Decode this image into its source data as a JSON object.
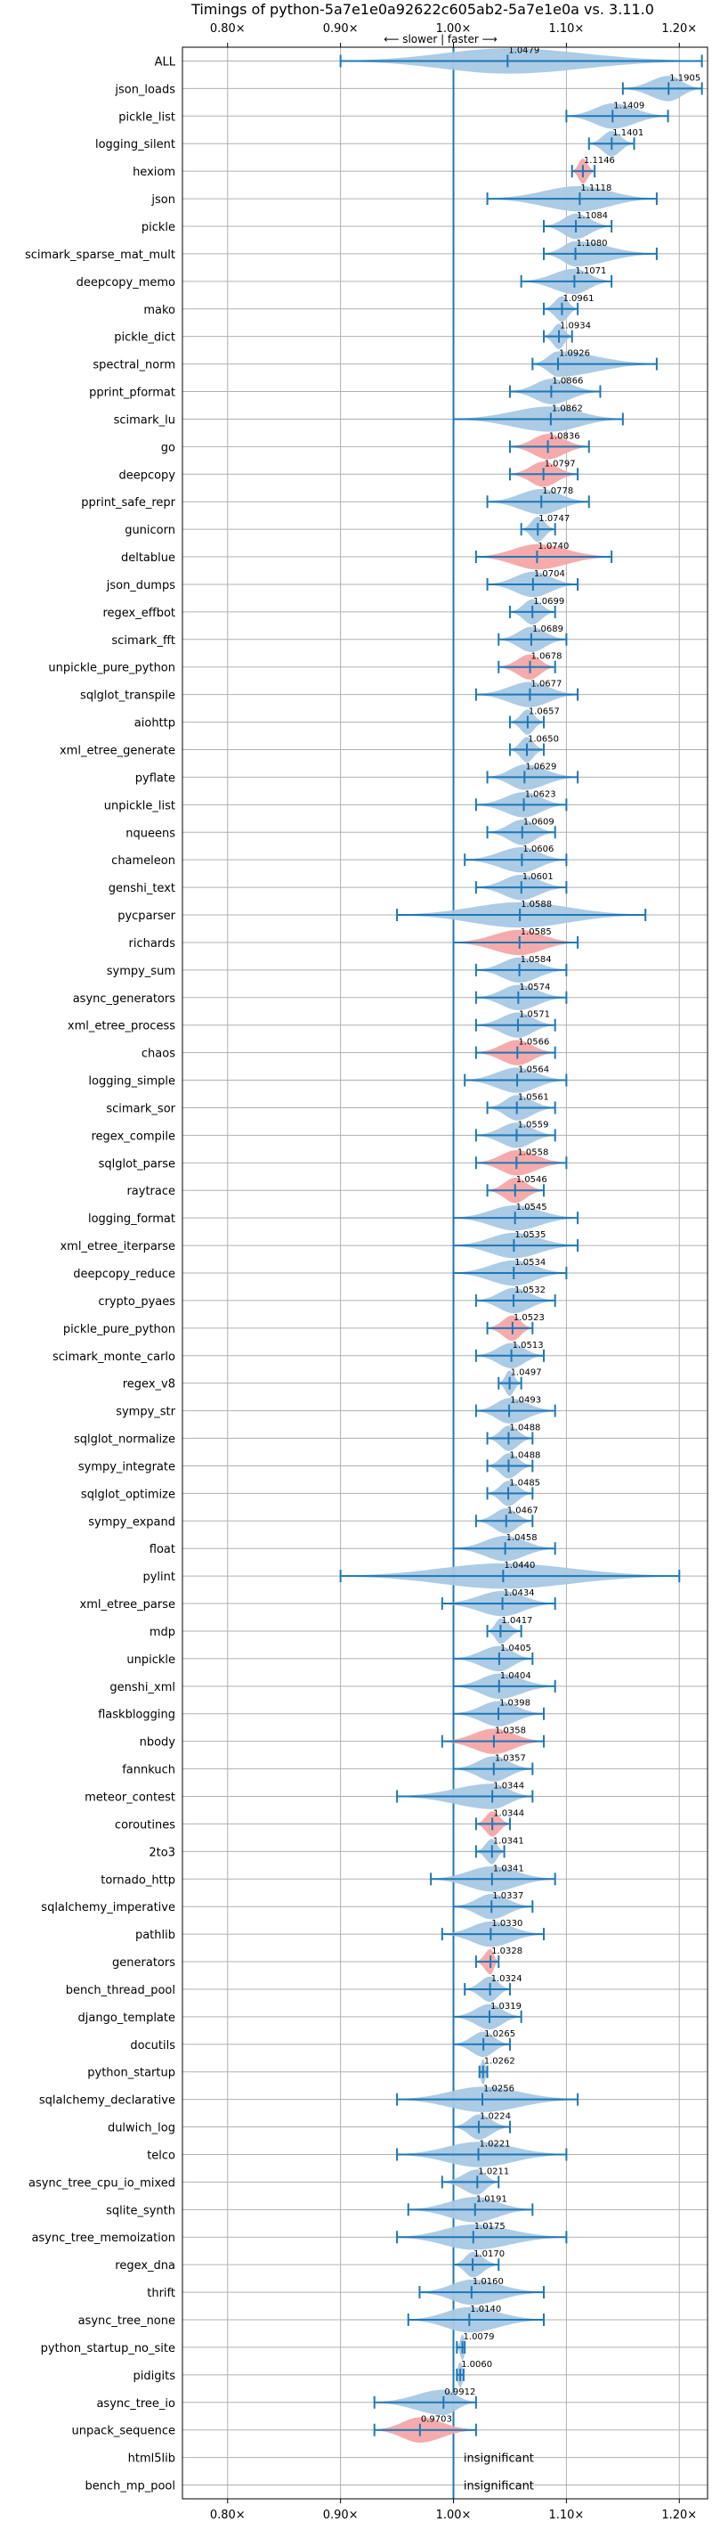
{
  "chart_data": {
    "type": "violin",
    "title": "Timings of python-5a7e1e0a92622c605ab2-5a7e1e0a vs. 3.11.0",
    "subtitle": "⟵ slower | faster ⟶",
    "xlim": [
      0.76,
      1.225
    ],
    "xticks": [
      0.8,
      0.9,
      1.0,
      1.1,
      1.2
    ],
    "xtick_labels": [
      "0.80×",
      "0.90×",
      "1.00×",
      "1.10×",
      "1.20×"
    ],
    "reference_line": 1.0,
    "grid": true,
    "colors": {
      "faster": "#a8c8e4",
      "slower": "#f4a6a8",
      "whisker": "#1f77b4"
    },
    "insignificant_label": "insignificant",
    "benchmarks": [
      {
        "name": "ALL",
        "value": "1.0479",
        "center": 1.0479,
        "min": 0.9,
        "max": 1.22,
        "slower": false
      },
      {
        "name": "json_loads",
        "value": "1.1905",
        "center": 1.1905,
        "min": 1.15,
        "max": 1.22,
        "slower": false
      },
      {
        "name": "pickle_list",
        "value": "1.1409",
        "center": 1.1409,
        "min": 1.1,
        "max": 1.19,
        "slower": false
      },
      {
        "name": "logging_silent",
        "value": "1.1401",
        "center": 1.1401,
        "min": 1.12,
        "max": 1.16,
        "slower": false
      },
      {
        "name": "hexiom",
        "value": "1.1146",
        "center": 1.1146,
        "min": 1.105,
        "max": 1.125,
        "slower": true
      },
      {
        "name": "json",
        "value": "1.1118",
        "center": 1.1118,
        "min": 1.03,
        "max": 1.18,
        "slower": false
      },
      {
        "name": "pickle",
        "value": "1.1084",
        "center": 1.1084,
        "min": 1.08,
        "max": 1.14,
        "slower": false
      },
      {
        "name": "scimark_sparse_mat_mult",
        "value": "1.1080",
        "center": 1.108,
        "min": 1.08,
        "max": 1.18,
        "slower": false
      },
      {
        "name": "deepcopy_memo",
        "value": "1.1071",
        "center": 1.1071,
        "min": 1.06,
        "max": 1.14,
        "slower": false
      },
      {
        "name": "mako",
        "value": "1.0961",
        "center": 1.0961,
        "min": 1.08,
        "max": 1.11,
        "slower": false
      },
      {
        "name": "pickle_dict",
        "value": "1.0934",
        "center": 1.0934,
        "min": 1.08,
        "max": 1.105,
        "slower": false
      },
      {
        "name": "spectral_norm",
        "value": "1.0926",
        "center": 1.0926,
        "min": 1.07,
        "max": 1.18,
        "slower": false
      },
      {
        "name": "pprint_pformat",
        "value": "1.0866",
        "center": 1.0866,
        "min": 1.05,
        "max": 1.13,
        "slower": false
      },
      {
        "name": "scimark_lu",
        "value": "1.0862",
        "center": 1.0862,
        "min": 1.0,
        "max": 1.15,
        "slower": false
      },
      {
        "name": "go",
        "value": "1.0836",
        "center": 1.0836,
        "min": 1.05,
        "max": 1.12,
        "slower": true
      },
      {
        "name": "deepcopy",
        "value": "1.0797",
        "center": 1.0797,
        "min": 1.05,
        "max": 1.11,
        "slower": true
      },
      {
        "name": "pprint_safe_repr",
        "value": "1.0778",
        "center": 1.0778,
        "min": 1.03,
        "max": 1.12,
        "slower": false
      },
      {
        "name": "gunicorn",
        "value": "1.0747",
        "center": 1.0747,
        "min": 1.06,
        "max": 1.09,
        "slower": false
      },
      {
        "name": "deltablue",
        "value": "1.0740",
        "center": 1.074,
        "min": 1.02,
        "max": 1.14,
        "slower": true
      },
      {
        "name": "json_dumps",
        "value": "1.0704",
        "center": 1.0704,
        "min": 1.03,
        "max": 1.11,
        "slower": false
      },
      {
        "name": "regex_effbot",
        "value": "1.0699",
        "center": 1.0699,
        "min": 1.05,
        "max": 1.09,
        "slower": false
      },
      {
        "name": "scimark_fft",
        "value": "1.0689",
        "center": 1.0689,
        "min": 1.04,
        "max": 1.1,
        "slower": false
      },
      {
        "name": "unpickle_pure_python",
        "value": "1.0678",
        "center": 1.0678,
        "min": 1.04,
        "max": 1.09,
        "slower": true
      },
      {
        "name": "sqlglot_transpile",
        "value": "1.0677",
        "center": 1.0677,
        "min": 1.02,
        "max": 1.11,
        "slower": false
      },
      {
        "name": "aiohttp",
        "value": "1.0657",
        "center": 1.0657,
        "min": 1.05,
        "max": 1.08,
        "slower": false
      },
      {
        "name": "xml_etree_generate",
        "value": "1.0650",
        "center": 1.065,
        "min": 1.05,
        "max": 1.08,
        "slower": false
      },
      {
        "name": "pyflate",
        "value": "1.0629",
        "center": 1.0629,
        "min": 1.03,
        "max": 1.11,
        "slower": false
      },
      {
        "name": "unpickle_list",
        "value": "1.0623",
        "center": 1.0623,
        "min": 1.02,
        "max": 1.1,
        "slower": false
      },
      {
        "name": "nqueens",
        "value": "1.0609",
        "center": 1.0609,
        "min": 1.03,
        "max": 1.09,
        "slower": false
      },
      {
        "name": "chameleon",
        "value": "1.0606",
        "center": 1.0606,
        "min": 1.01,
        "max": 1.1,
        "slower": false
      },
      {
        "name": "genshi_text",
        "value": "1.0601",
        "center": 1.0601,
        "min": 1.02,
        "max": 1.1,
        "slower": false
      },
      {
        "name": "pycparser",
        "value": "1.0588",
        "center": 1.0588,
        "min": 0.95,
        "max": 1.17,
        "slower": false
      },
      {
        "name": "richards",
        "value": "1.0585",
        "center": 1.0585,
        "min": 1.0,
        "max": 1.11,
        "slower": true
      },
      {
        "name": "sympy_sum",
        "value": "1.0584",
        "center": 1.0584,
        "min": 1.02,
        "max": 1.1,
        "slower": false
      },
      {
        "name": "async_generators",
        "value": "1.0574",
        "center": 1.0574,
        "min": 1.02,
        "max": 1.1,
        "slower": false
      },
      {
        "name": "xml_etree_process",
        "value": "1.0571",
        "center": 1.0571,
        "min": 1.02,
        "max": 1.09,
        "slower": false
      },
      {
        "name": "chaos",
        "value": "1.0566",
        "center": 1.0566,
        "min": 1.02,
        "max": 1.09,
        "slower": true
      },
      {
        "name": "logging_simple",
        "value": "1.0564",
        "center": 1.0564,
        "min": 1.01,
        "max": 1.1,
        "slower": false
      },
      {
        "name": "scimark_sor",
        "value": "1.0561",
        "center": 1.0561,
        "min": 1.03,
        "max": 1.09,
        "slower": false
      },
      {
        "name": "regex_compile",
        "value": "1.0559",
        "center": 1.0559,
        "min": 1.02,
        "max": 1.09,
        "slower": false
      },
      {
        "name": "sqlglot_parse",
        "value": "1.0558",
        "center": 1.0558,
        "min": 1.02,
        "max": 1.1,
        "slower": true
      },
      {
        "name": "raytrace",
        "value": "1.0546",
        "center": 1.0546,
        "min": 1.03,
        "max": 1.08,
        "slower": true
      },
      {
        "name": "logging_format",
        "value": "1.0545",
        "center": 1.0545,
        "min": 1.0,
        "max": 1.11,
        "slower": false
      },
      {
        "name": "xml_etree_iterparse",
        "value": "1.0535",
        "center": 1.0535,
        "min": 1.0,
        "max": 1.11,
        "slower": false
      },
      {
        "name": "deepcopy_reduce",
        "value": "1.0534",
        "center": 1.0534,
        "min": 1.0,
        "max": 1.1,
        "slower": false
      },
      {
        "name": "crypto_pyaes",
        "value": "1.0532",
        "center": 1.0532,
        "min": 1.02,
        "max": 1.09,
        "slower": false
      },
      {
        "name": "pickle_pure_python",
        "value": "1.0523",
        "center": 1.0523,
        "min": 1.03,
        "max": 1.07,
        "slower": true
      },
      {
        "name": "scimark_monte_carlo",
        "value": "1.0513",
        "center": 1.0513,
        "min": 1.02,
        "max": 1.08,
        "slower": false
      },
      {
        "name": "regex_v8",
        "value": "1.0497",
        "center": 1.0497,
        "min": 1.04,
        "max": 1.06,
        "slower": false
      },
      {
        "name": "sympy_str",
        "value": "1.0493",
        "center": 1.0493,
        "min": 1.02,
        "max": 1.09,
        "slower": false
      },
      {
        "name": "sqlglot_normalize",
        "value": "1.0488",
        "center": 1.0488,
        "min": 1.03,
        "max": 1.07,
        "slower": false
      },
      {
        "name": "sympy_integrate",
        "value": "1.0488",
        "center": 1.0488,
        "min": 1.03,
        "max": 1.07,
        "slower": false
      },
      {
        "name": "sqlglot_optimize",
        "value": "1.0485",
        "center": 1.0485,
        "min": 1.03,
        "max": 1.07,
        "slower": false
      },
      {
        "name": "sympy_expand",
        "value": "1.0467",
        "center": 1.0467,
        "min": 1.02,
        "max": 1.07,
        "slower": false
      },
      {
        "name": "float",
        "value": "1.0458",
        "center": 1.0458,
        "min": 1.0,
        "max": 1.09,
        "slower": false
      },
      {
        "name": "pylint",
        "value": "1.0440",
        "center": 1.044,
        "min": 0.9,
        "max": 1.2,
        "slower": false
      },
      {
        "name": "xml_etree_parse",
        "value": "1.0434",
        "center": 1.0434,
        "min": 0.99,
        "max": 1.09,
        "slower": false
      },
      {
        "name": "mdp",
        "value": "1.0417",
        "center": 1.0417,
        "min": 1.03,
        "max": 1.06,
        "slower": false
      },
      {
        "name": "unpickle",
        "value": "1.0405",
        "center": 1.0405,
        "min": 1.0,
        "max": 1.07,
        "slower": false
      },
      {
        "name": "genshi_xml",
        "value": "1.0404",
        "center": 1.0404,
        "min": 1.0,
        "max": 1.09,
        "slower": false
      },
      {
        "name": "flaskblogging",
        "value": "1.0398",
        "center": 1.0398,
        "min": 1.0,
        "max": 1.08,
        "slower": false
      },
      {
        "name": "nbody",
        "value": "1.0358",
        "center": 1.0358,
        "min": 0.99,
        "max": 1.08,
        "slower": true
      },
      {
        "name": "fannkuch",
        "value": "1.0357",
        "center": 1.0357,
        "min": 1.0,
        "max": 1.07,
        "slower": false
      },
      {
        "name": "meteor_contest",
        "value": "1.0344",
        "center": 1.0344,
        "min": 0.95,
        "max": 1.07,
        "slower": false
      },
      {
        "name": "coroutines",
        "value": "1.0344",
        "center": 1.0344,
        "min": 1.02,
        "max": 1.05,
        "slower": true
      },
      {
        "name": "2to3",
        "value": "1.0341",
        "center": 1.0341,
        "min": 1.02,
        "max": 1.045,
        "slower": false
      },
      {
        "name": "tornado_http",
        "value": "1.0341",
        "center": 1.0341,
        "min": 0.98,
        "max": 1.09,
        "slower": false
      },
      {
        "name": "sqlalchemy_imperative",
        "value": "1.0337",
        "center": 1.0337,
        "min": 1.0,
        "max": 1.07,
        "slower": false
      },
      {
        "name": "pathlib",
        "value": "1.0330",
        "center": 1.033,
        "min": 0.99,
        "max": 1.08,
        "slower": false
      },
      {
        "name": "generators",
        "value": "1.0328",
        "center": 1.0328,
        "min": 1.02,
        "max": 1.04,
        "slower": true
      },
      {
        "name": "bench_thread_pool",
        "value": "1.0324",
        "center": 1.0324,
        "min": 1.01,
        "max": 1.05,
        "slower": false
      },
      {
        "name": "django_template",
        "value": "1.0319",
        "center": 1.0319,
        "min": 1.0,
        "max": 1.06,
        "slower": false
      },
      {
        "name": "docutils",
        "value": "1.0265",
        "center": 1.0265,
        "min": 1.0,
        "max": 1.05,
        "slower": false
      },
      {
        "name": "python_startup",
        "value": "1.0262",
        "center": 1.0262,
        "min": 1.023,
        "max": 1.03,
        "slower": false
      },
      {
        "name": "sqlalchemy_declarative",
        "value": "1.0256",
        "center": 1.0256,
        "min": 0.95,
        "max": 1.11,
        "slower": false
      },
      {
        "name": "dulwich_log",
        "value": "1.0224",
        "center": 1.0224,
        "min": 1.0,
        "max": 1.05,
        "slower": false
      },
      {
        "name": "telco",
        "value": "1.0221",
        "center": 1.0221,
        "min": 0.95,
        "max": 1.1,
        "slower": false
      },
      {
        "name": "async_tree_cpu_io_mixed",
        "value": "1.0211",
        "center": 1.0211,
        "min": 0.99,
        "max": 1.04,
        "slower": false
      },
      {
        "name": "sqlite_synth",
        "value": "1.0191",
        "center": 1.0191,
        "min": 0.96,
        "max": 1.07,
        "slower": false
      },
      {
        "name": "async_tree_memoization",
        "value": "1.0175",
        "center": 1.0175,
        "min": 0.95,
        "max": 1.1,
        "slower": false
      },
      {
        "name": "regex_dna",
        "value": "1.0170",
        "center": 1.017,
        "min": 1.0,
        "max": 1.04,
        "slower": false
      },
      {
        "name": "thrift",
        "value": "1.0160",
        "center": 1.016,
        "min": 0.97,
        "max": 1.08,
        "slower": false
      },
      {
        "name": "async_tree_none",
        "value": "1.0140",
        "center": 1.014,
        "min": 0.96,
        "max": 1.08,
        "slower": false
      },
      {
        "name": "python_startup_no_site",
        "value": "1.0079",
        "center": 1.0079,
        "min": 1.003,
        "max": 1.01,
        "slower": false
      },
      {
        "name": "pidigits",
        "value": "1.0060",
        "center": 1.006,
        "min": 1.003,
        "max": 1.009,
        "slower": false
      },
      {
        "name": "async_tree_io",
        "value": "0.9912",
        "center": 0.9912,
        "min": 0.93,
        "max": 1.02,
        "slower": false
      },
      {
        "name": "unpack_sequence",
        "value": "0.9703",
        "center": 0.9703,
        "min": 0.93,
        "max": 1.02,
        "slower": true
      },
      {
        "name": "html5lib",
        "value": "",
        "center": null,
        "min": null,
        "max": null,
        "slower": false
      },
      {
        "name": "bench_mp_pool",
        "value": "",
        "center": null,
        "min": null,
        "max": null,
        "slower": false
      }
    ]
  }
}
